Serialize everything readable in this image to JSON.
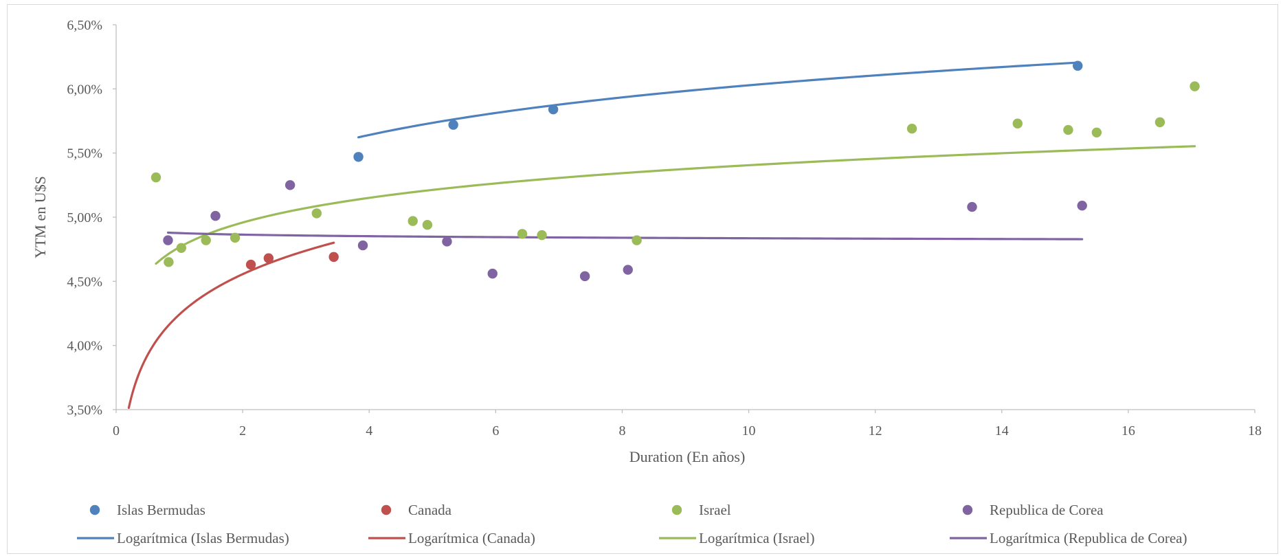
{
  "chart_data": {
    "type": "scatter",
    "title": "",
    "xlabel": "Duration (En años)",
    "ylabel": "YTM en U$S",
    "xlim": [
      0,
      18
    ],
    "ylim": [
      3.5,
      6.5
    ],
    "x_ticks": [
      0,
      2,
      4,
      6,
      8,
      10,
      12,
      14,
      16,
      18
    ],
    "y_ticks": [
      3.5,
      4.0,
      4.5,
      5.0,
      5.5,
      6.0,
      6.5
    ],
    "y_tick_labels": [
      "3,50%",
      "4,00%",
      "4,50%",
      "5,00%",
      "5,50%",
      "6,00%",
      "6,50%"
    ],
    "grid": false,
    "legend_position": "bottom",
    "series": [
      {
        "name": "Islas Bermudas",
        "color": "#4f81bd",
        "points": [
          [
            3.83,
            5.47
          ],
          [
            5.33,
            5.72
          ],
          [
            6.91,
            5.84
          ],
          [
            15.2,
            6.18
          ]
        ],
        "trendline": {
          "type": "logarithmic",
          "name": "Logarítmica (Islas Bermudas)",
          "a": 5.055,
          "b": 0.4226,
          "x_range": [
            3.83,
            15.2
          ]
        }
      },
      {
        "name": "Canada",
        "color": "#c0504d",
        "points": [
          [
            2.13,
            4.63
          ],
          [
            2.41,
            4.68
          ],
          [
            3.44,
            4.69
          ]
        ],
        "trendline": {
          "type": "logarithmic",
          "name": "Logarítmica (Canada)",
          "a": 4.242,
          "b": 0.4524,
          "x_range": [
            0.2,
            3.44
          ]
        }
      },
      {
        "name": "Israel",
        "color": "#9bbb59",
        "points": [
          [
            0.63,
            5.31
          ],
          [
            0.83,
            4.65
          ],
          [
            1.03,
            4.76
          ],
          [
            1.42,
            4.82
          ],
          [
            1.88,
            4.84
          ],
          [
            3.17,
            5.03
          ],
          [
            4.69,
            4.97
          ],
          [
            4.92,
            4.94
          ],
          [
            6.42,
            4.87
          ],
          [
            6.73,
            4.86
          ],
          [
            8.23,
            4.82
          ],
          [
            12.58,
            5.69
          ],
          [
            14.25,
            5.73
          ],
          [
            15.05,
            5.68
          ],
          [
            15.5,
            5.66
          ],
          [
            16.5,
            5.74
          ],
          [
            17.05,
            6.02
          ]
        ],
        "trendline": {
          "type": "logarithmic",
          "name": "Logarítmica (Israel)",
          "a": 4.766,
          "b": 0.2775,
          "x_range": [
            0.63,
            17.05
          ]
        }
      },
      {
        "name": "Republica de Corea",
        "color": "#8064a2",
        "points": [
          [
            0.82,
            4.82
          ],
          [
            1.57,
            5.01
          ],
          [
            2.75,
            5.25
          ],
          [
            3.9,
            4.78
          ],
          [
            5.23,
            4.81
          ],
          [
            5.95,
            4.56
          ],
          [
            7.41,
            4.54
          ],
          [
            8.09,
            4.59
          ],
          [
            13.53,
            5.08
          ],
          [
            15.27,
            5.09
          ]
        ],
        "trendline": {
          "type": "logarithmic",
          "name": "Logarítmica (Republica de Corea)",
          "a": 4.876,
          "b": -0.0175,
          "x_range": [
            0.82,
            15.27
          ]
        }
      }
    ]
  }
}
